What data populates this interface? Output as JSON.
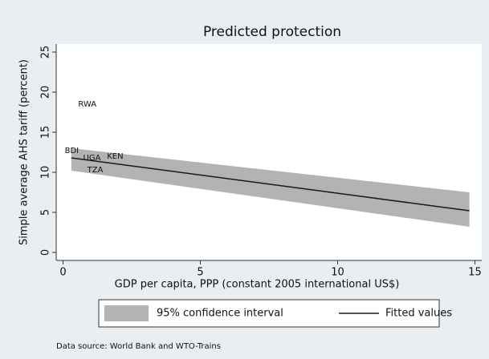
{
  "chart_data": {
    "type": "scatter",
    "title": "Predicted protection",
    "x_label": "GDP per capita, PPP (constant 2005 international US$)",
    "y_label": "Simple average AHS tariff (percent)",
    "note": "Data source: World Bank and WTO-Trains",
    "points": {
      "labels": [
        "RWA",
        "BDI",
        "UGA",
        "KEN",
        "TZA"
      ],
      "x": [
        0.55,
        0.06,
        0.73,
        1.6,
        0.88
      ],
      "y": [
        18.5,
        12.7,
        11.8,
        12.0,
        10.3
      ],
      "color": "#1a1a1a"
    },
    "series": [
      {
        "name": "95% confidence interval",
        "type": "area",
        "color": "#b3b3b3",
        "x": [
          0.3,
          14.8
        ],
        "lower": [
          10.2,
          3.2
        ],
        "upper": [
          13.0,
          7.5
        ]
      },
      {
        "name": "Fitted values",
        "type": "line",
        "color": "#1a1a1a",
        "x": [
          0.3,
          14.8
        ],
        "values": [
          11.8,
          5.2
        ]
      }
    ],
    "xlim": [
      -0.25,
      15.25
    ],
    "xticks": [
      0,
      5,
      10,
      15
    ],
    "ylim": [
      -1,
      26
    ],
    "yticks": [
      0,
      5,
      10,
      15,
      20,
      25
    ]
  }
}
